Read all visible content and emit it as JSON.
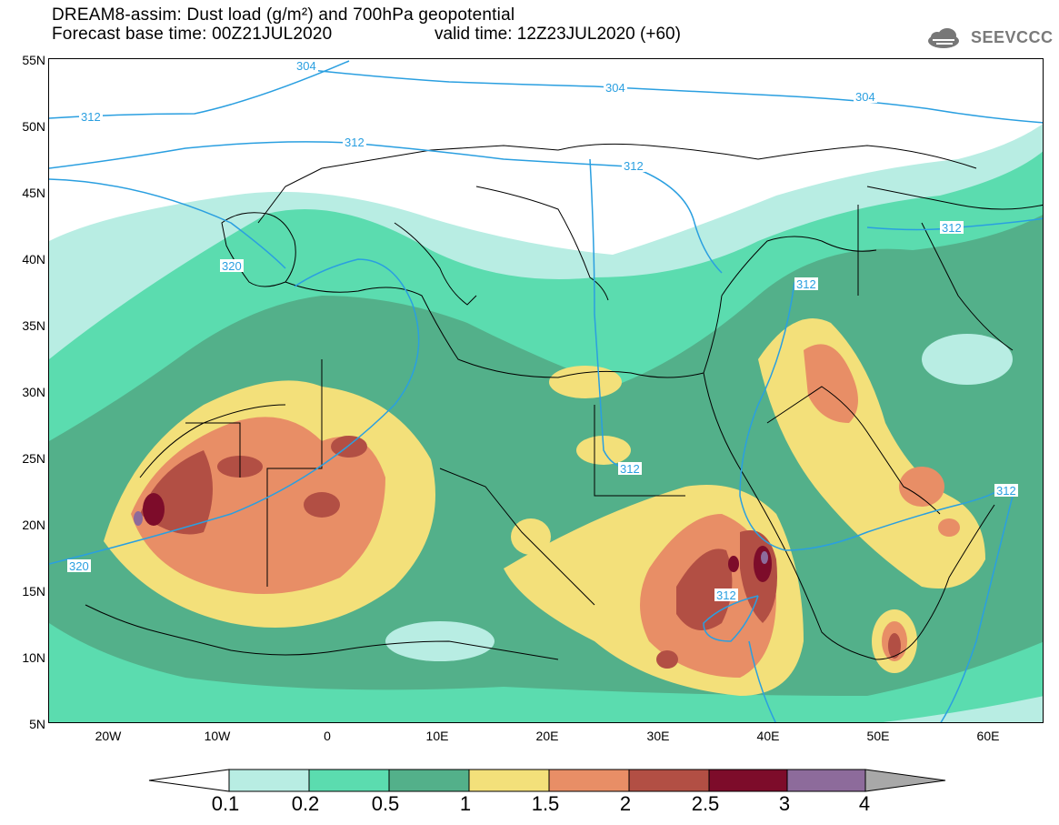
{
  "header": {
    "title_line1": "DREAM8-assim: Dust load (g/m²) and 700hPa geopotential",
    "title_line2": "Forecast base time: 00Z21JUL2020",
    "valid_time": "valid time: 12Z23JUL2020 (+60)",
    "logo_text": "SEEVCCC"
  },
  "axes": {
    "lat_labels": [
      "55N",
      "50N",
      "45N",
      "40N",
      "35N",
      "30N",
      "25N",
      "20N",
      "15N",
      "10N",
      "5N"
    ],
    "lon_labels": [
      "20W",
      "10W",
      "0",
      "10E",
      "20E",
      "30E",
      "40E",
      "50E",
      "60E"
    ]
  },
  "contours": {
    "geopotential_labels": [
      "304",
      "304",
      "304",
      "312",
      "312",
      "312",
      "312",
      "312",
      "312",
      "312",
      "312",
      "320",
      "320"
    ]
  },
  "colorbar": {
    "labels": [
      "0.1",
      "0.2",
      "0.5",
      "1",
      "1.5",
      "2",
      "2.5",
      "3",
      "4"
    ],
    "colors": [
      "#ffffff",
      "#b8ede3",
      "#5bdcaf",
      "#53b08a",
      "#f3e07a",
      "#e88e66",
      "#b24f44",
      "#7d0c2a",
      "#8d6b9b",
      "#a8a8a8"
    ]
  }
}
